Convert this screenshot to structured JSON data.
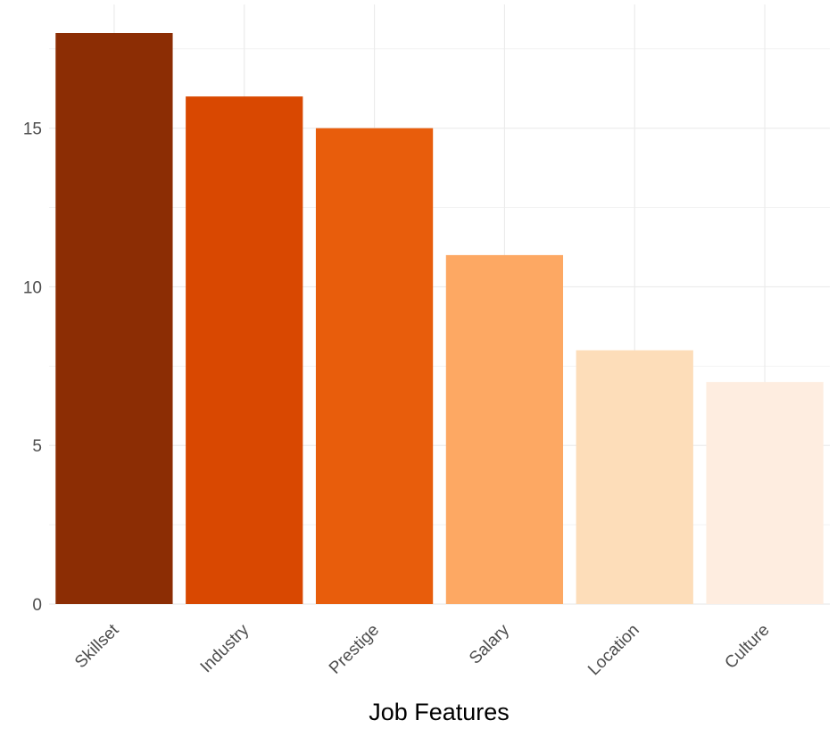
{
  "chart_data": {
    "type": "bar",
    "title": "",
    "xlabel": "Job Features",
    "ylabel": "",
    "categories": [
      "Skillset",
      "Industry",
      "Prestige",
      "Salary",
      "Location",
      "Culture"
    ],
    "values": [
      18,
      16,
      15,
      11,
      8,
      7
    ],
    "colors": [
      "#8C2D04",
      "#D94801",
      "#E85D0C",
      "#FDA863",
      "#FDDDB9",
      "#FEEDE0"
    ],
    "ylim": [
      0,
      18.9
    ],
    "yticks": [
      0,
      5,
      10,
      15
    ],
    "ytick_labels": [
      "0",
      "5",
      "10",
      "15"
    ],
    "grid": true,
    "legend": "none"
  }
}
